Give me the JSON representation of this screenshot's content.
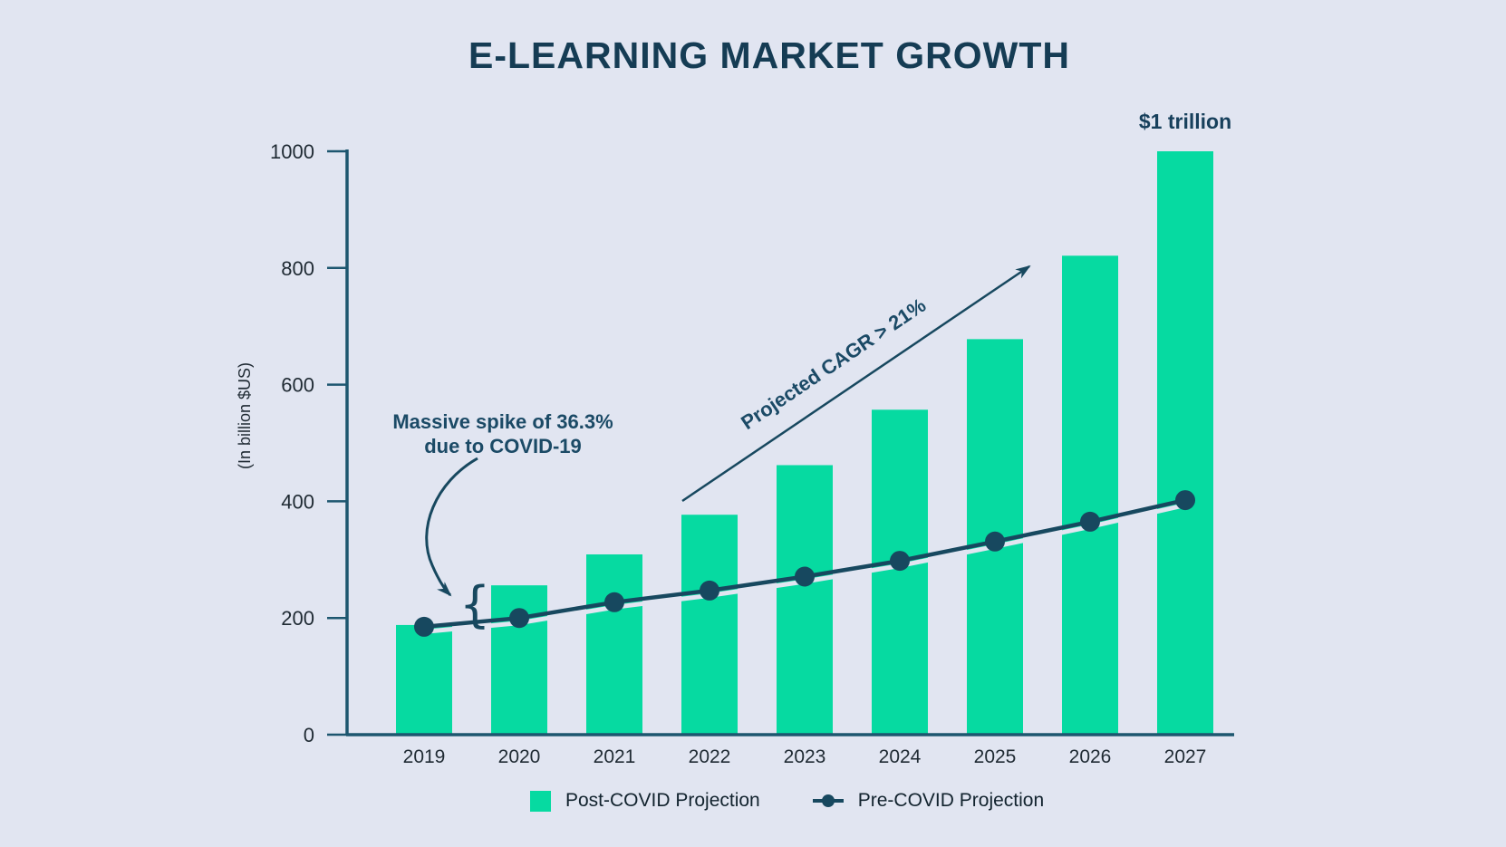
{
  "title": "E-LEARNING MARKET GROWTH",
  "annotations": {
    "trillion": "$1 trillion",
    "spike_line1": "Massive spike of 36.3%",
    "spike_line2": "due to COVID-19",
    "cagr": "Projected CAGR > 21%"
  },
  "legend": {
    "post_covid": "Post-COVID Projection",
    "pre_covid": "Pre-COVID Projection"
  },
  "chart_data": {
    "type": "bar",
    "title": "E-LEARNING MARKET GROWTH",
    "categories": [
      "2019",
      "2020",
      "2021",
      "2022",
      "2023",
      "2024",
      "2025",
      "2026",
      "2027"
    ],
    "series": [
      {
        "name": "Post-COVID Projection",
        "type": "bar",
        "color": "#06DAA1",
        "values": [
          188,
          256,
          309,
          377,
          462,
          557,
          678,
          821,
          1000
        ]
      },
      {
        "name": "Pre-COVID Projection",
        "type": "line",
        "color": "#17485F",
        "values": [
          185,
          200,
          227,
          247,
          271,
          298,
          331,
          365,
          402
        ]
      }
    ],
    "xlabel": "",
    "ylabel": "(In billion $US)",
    "ylim": [
      0,
      1000
    ],
    "yticks": [
      0,
      200,
      400,
      600,
      800,
      1000
    ],
    "grid": false,
    "legend_position": "bottom",
    "annotations": [
      "$1 trillion above 2027 bar",
      "Massive spike of 36.3% due to COVID-19 brace between 2019 and 2020 levels",
      "Projected CAGR > 21% along rising arrow"
    ]
  },
  "colors": {
    "background": "#E1E5F1",
    "bar": "#06DAA1",
    "line": "#17485F",
    "axis": "#1D566F",
    "title_text": "#153C54",
    "tick_text": "#1F2A33"
  }
}
